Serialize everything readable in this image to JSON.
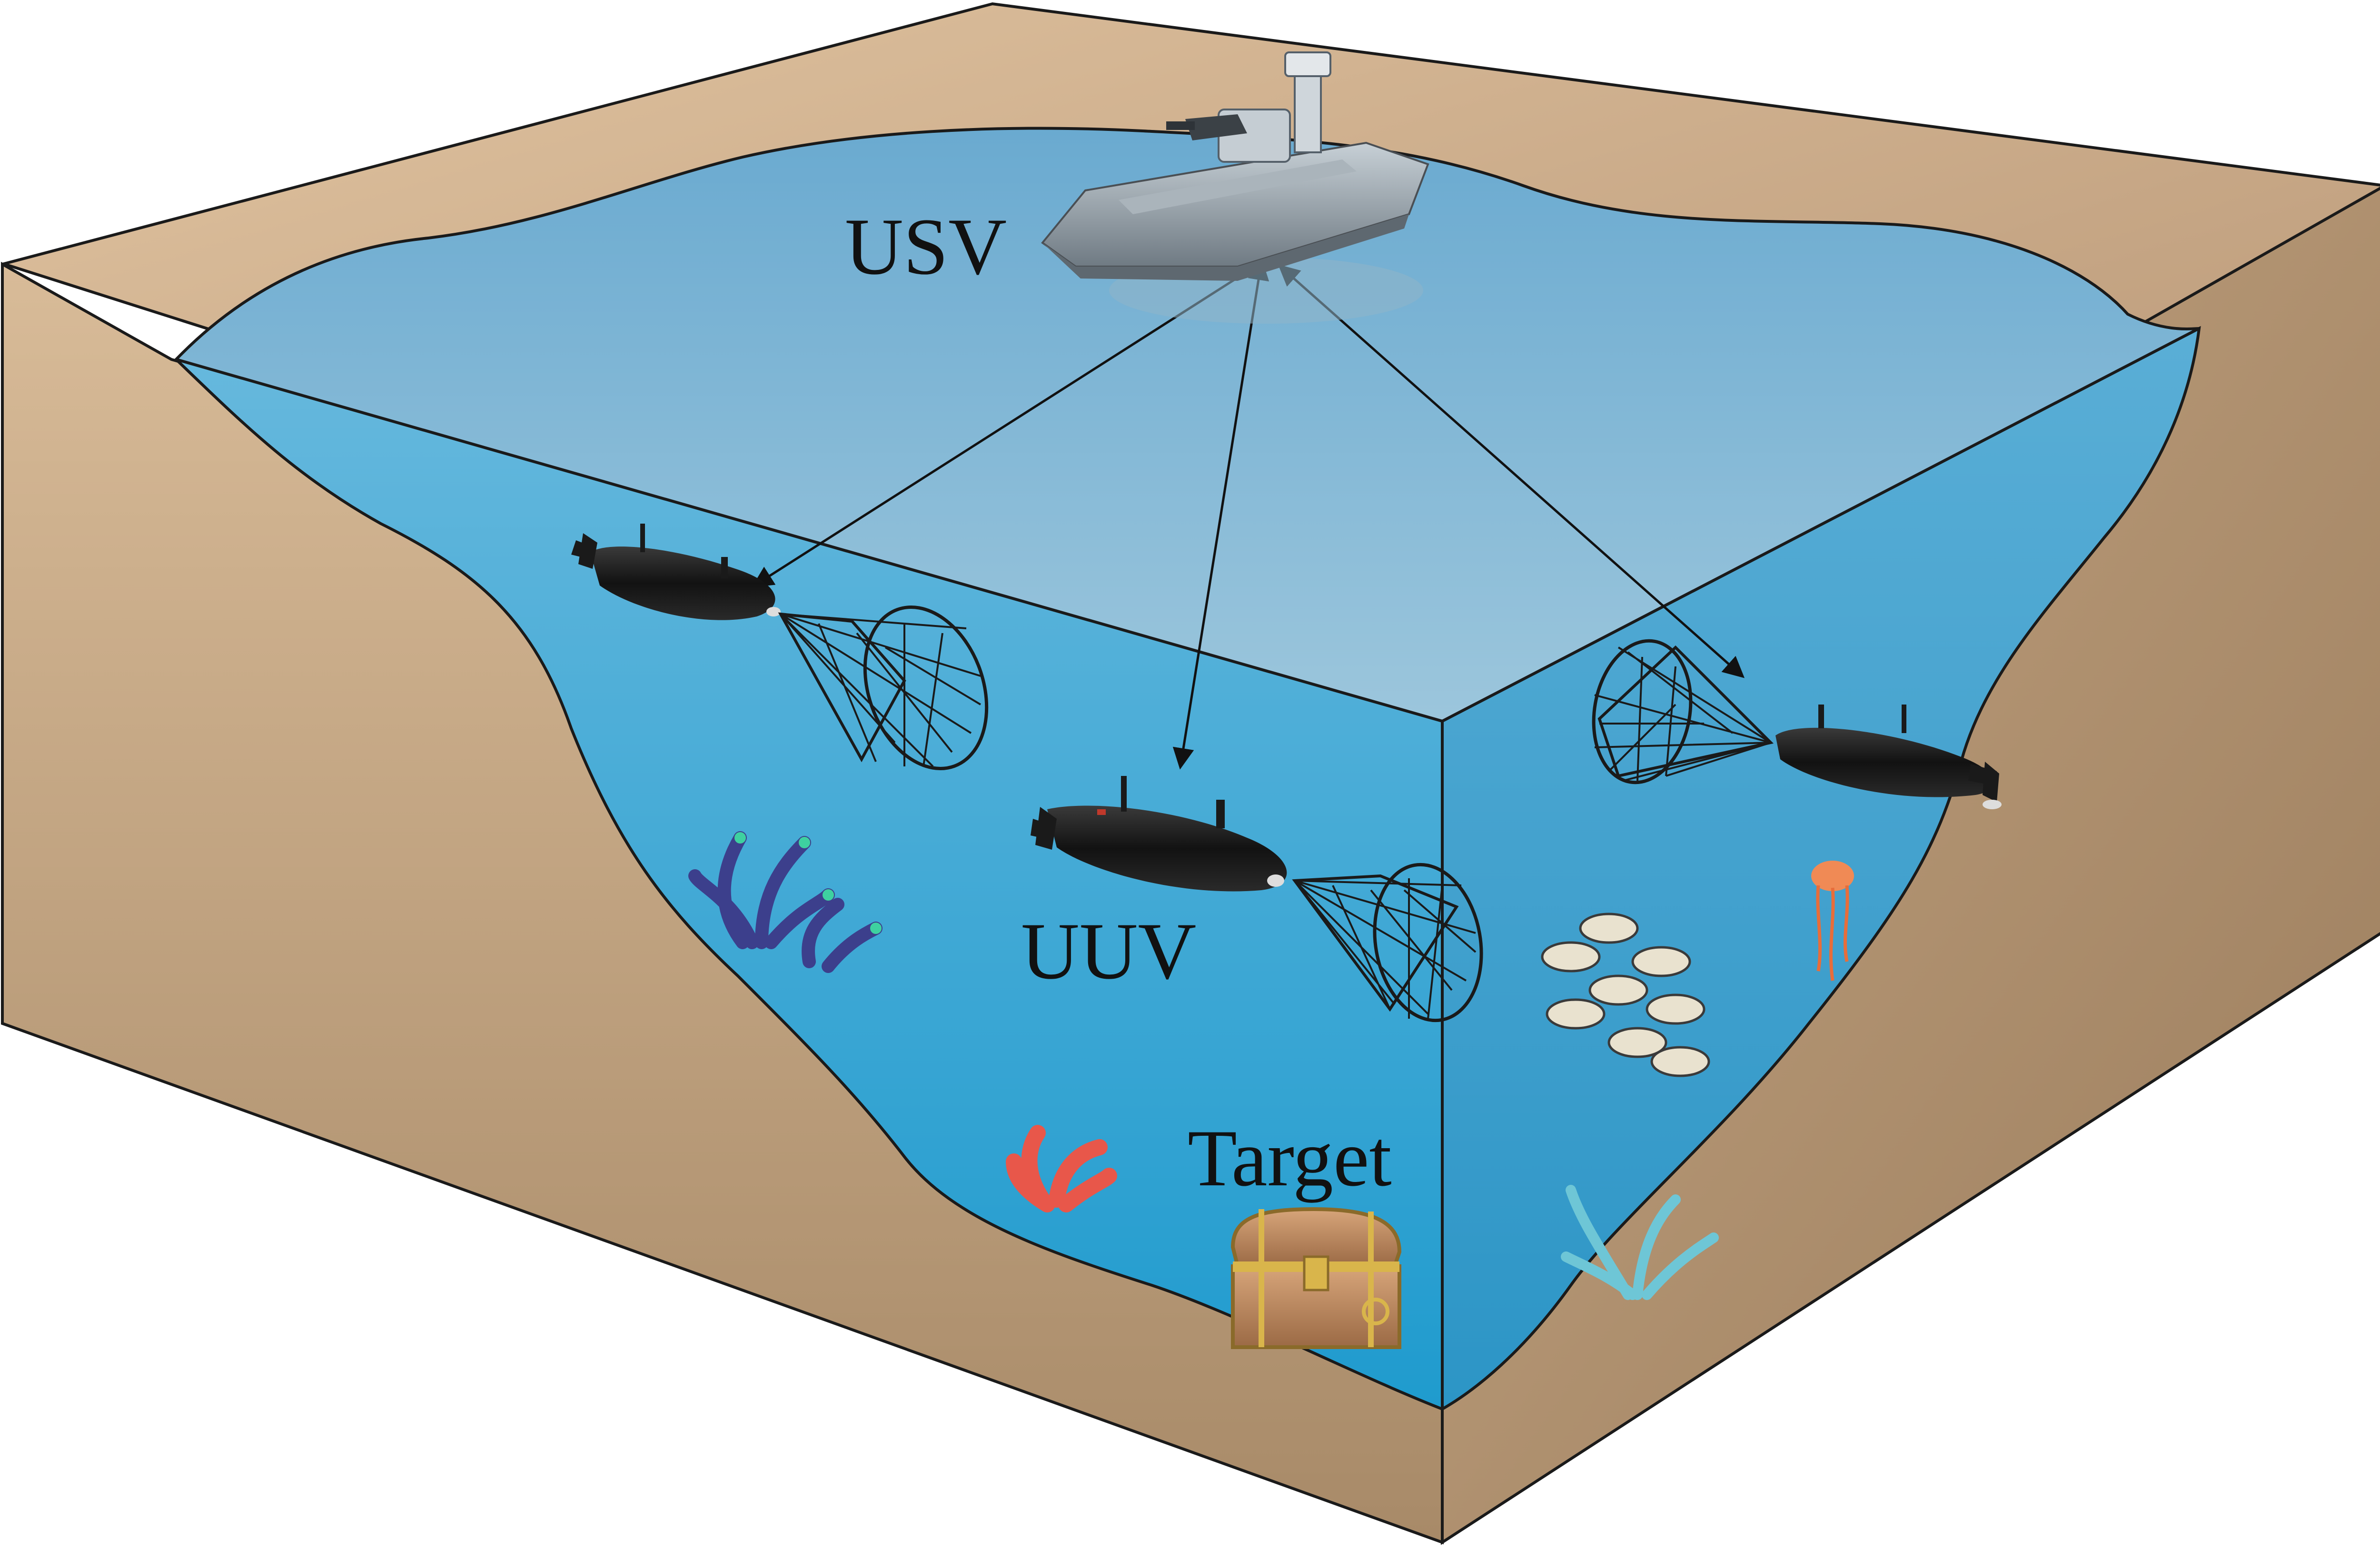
{
  "labels": {
    "usv": "USV",
    "uuv": "UUV",
    "target": "Target"
  },
  "colors": {
    "sand_light": "#d6b896",
    "sand_dark": "#a88a68",
    "water_surface": "#7fb4d3",
    "water_side": "#4aa6cf",
    "water_deep": "#2a96c8",
    "outline": "#1a1a1a",
    "vehicle_hull": "#1c1c1c",
    "boat_hull": "#8f9aa3"
  },
  "icons": [
    "usv-boat-icon",
    "uuv-submarine-icon",
    "fishing-net-icon",
    "coral-icon",
    "fish-school-icon",
    "jellyfish-icon",
    "treasure-chest-icon"
  ]
}
